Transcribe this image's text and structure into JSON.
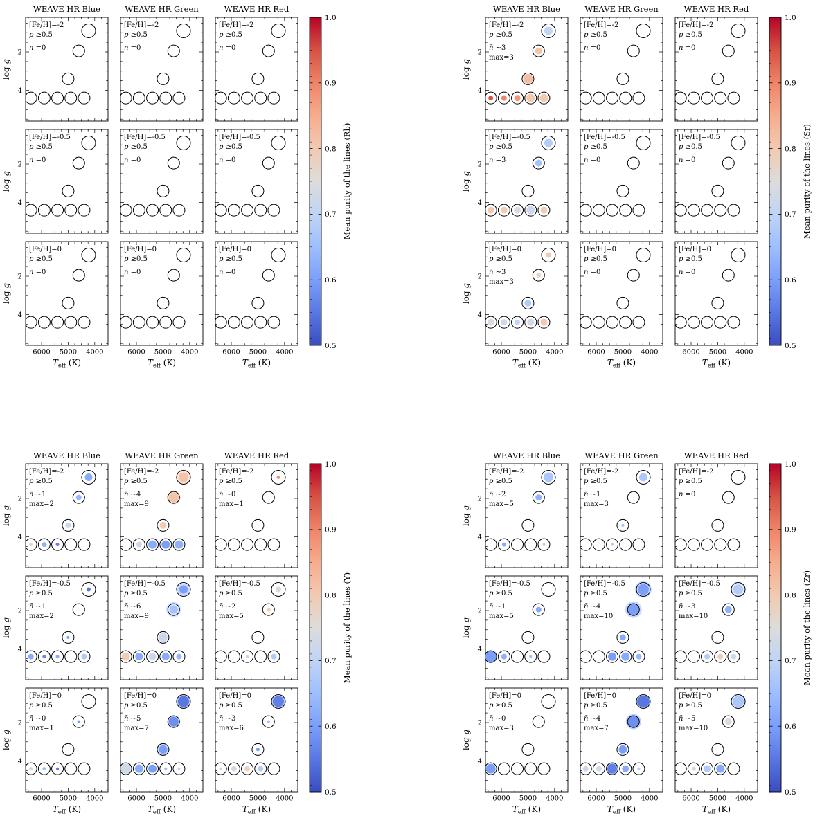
{
  "figure_title": "",
  "marker_grid": [
    {
      "teff": 4230,
      "logg": 0.9,
      "r": 10
    },
    {
      "teff": 4600,
      "logg": 1.95,
      "r": 8.5
    },
    {
      "teff": 5000,
      "logg": 3.4,
      "r": 8.5
    },
    {
      "teff": 6400,
      "logg": 4.4,
      "r": 8.5
    },
    {
      "teff": 5900,
      "logg": 4.4,
      "r": 8.5
    },
    {
      "teff": 5400,
      "logg": 4.4,
      "r": 8.5
    },
    {
      "teff": 4900,
      "logg": 4.4,
      "r": 8.5
    },
    {
      "teff": 4400,
      "logg": 4.4,
      "r": 8.5
    }
  ],
  "chart_data": [
    {
      "type": "scatter",
      "species": "Rb",
      "colorbar_label": "Mean purity of the lines (Rb)",
      "colorbar_ticks": [
        1.0,
        0.9,
        0.8,
        0.7,
        0.6,
        0.5
      ],
      "colorbar_range": [
        0.5,
        1.0
      ],
      "column_titles": [
        "WEAVE HR Blue",
        "WEAVE HR Green",
        "WEAVE HR Red"
      ],
      "row_feh_labels": [
        "[Fe/H]=-2",
        "[Fe/H]=-0.5",
        "[Fe/H]=0"
      ],
      "p_label": "p ≥0.5",
      "xlabel": "T_eff (K)",
      "ylabel": "log g",
      "x_ticks": [
        6000,
        5000,
        4000
      ],
      "y_ticks": [
        2,
        4
      ],
      "x_range": [
        6600,
        3500
      ],
      "y_range": [
        0.2,
        5.6
      ],
      "panels": [
        {
          "n_lines": [
            "n =0"
          ],
          "dots": []
        },
        {
          "n_lines": [
            "n =0"
          ],
          "dots": []
        },
        {
          "n_lines": [
            "n =0"
          ],
          "dots": []
        },
        {
          "n_lines": [
            "n =0"
          ],
          "dots": []
        },
        {
          "n_lines": [
            "n =0"
          ],
          "dots": []
        },
        {
          "n_lines": [
            "n =0"
          ],
          "dots": []
        },
        {
          "n_lines": [
            "n =0"
          ],
          "dots": []
        },
        {
          "n_lines": [
            "n =0"
          ],
          "dots": []
        },
        {
          "n_lines": [
            "n =0"
          ],
          "dots": []
        }
      ]
    },
    {
      "type": "scatter",
      "species": "Sr",
      "colorbar_label": "Mean purity of the lines (Sr)",
      "colorbar_ticks": [
        1.0,
        0.9,
        0.8,
        0.7,
        0.6,
        0.5
      ],
      "colorbar_range": [
        0.5,
        1.0
      ],
      "column_titles": [
        "WEAVE HR Blue",
        "WEAVE HR Green",
        "WEAVE HR Red"
      ],
      "row_feh_labels": [
        "[Fe/H]=-2",
        "[Fe/H]=-0.5",
        "[Fe/H]=0"
      ],
      "p_label": "p ≥0.5",
      "xlabel": "T_eff (K)",
      "ylabel": "log g",
      "x_ticks": [
        6000,
        5000,
        4000
      ],
      "y_ticks": [
        2,
        4
      ],
      "x_range": [
        6600,
        3500
      ],
      "y_range": [
        0.2,
        5.6
      ],
      "panels": [
        {
          "n_lines": [
            "n̄ ∼3",
            "max=3"
          ],
          "dots": [
            {
              "m": 0,
              "r": 6,
              "v": 0.7
            },
            {
              "m": 1,
              "r": 5,
              "v": 0.81
            },
            {
              "m": 2,
              "r": 7,
              "v": 0.82
            },
            {
              "m": 3,
              "r": 3.5,
              "v": 0.95
            },
            {
              "m": 4,
              "r": 4,
              "v": 0.9
            },
            {
              "m": 5,
              "r": 4.5,
              "v": 0.88
            },
            {
              "m": 6,
              "r": 6,
              "v": 0.8
            },
            {
              "m": 7,
              "r": 6,
              "v": 0.8
            }
          ]
        },
        {
          "n_lines": [
            "n =0"
          ],
          "dots": []
        },
        {
          "n_lines": [
            "n =0"
          ],
          "dots": []
        },
        {
          "n_lines": [
            "n =3"
          ],
          "dots": [
            {
              "m": 0,
              "r": 6,
              "v": 0.68
            },
            {
              "m": 1,
              "r": 5,
              "v": 0.66
            },
            {
              "m": 3,
              "r": 5,
              "v": 0.8
            },
            {
              "m": 4,
              "r": 5,
              "v": 0.79
            },
            {
              "m": 5,
              "r": 5,
              "v": 0.74
            },
            {
              "m": 6,
              "r": 6,
              "v": 0.72
            },
            {
              "m": 7,
              "r": 5,
              "v": 0.79
            }
          ]
        },
        {
          "n_lines": [
            "n =0"
          ],
          "dots": []
        },
        {
          "n_lines": [
            "n =0"
          ],
          "dots": []
        },
        {
          "n_lines": [
            "n̄ ∼3",
            "max=3"
          ],
          "dots": [
            {
              "m": 0,
              "r": 4,
              "v": 0.8
            },
            {
              "m": 1,
              "r": 3.5,
              "v": 0.77
            },
            {
              "m": 2,
              "r": 5,
              "v": 0.68
            },
            {
              "m": 3,
              "r": 5,
              "v": 0.74
            },
            {
              "m": 4,
              "r": 4.5,
              "v": 0.73
            },
            {
              "m": 5,
              "r": 4,
              "v": 0.7
            },
            {
              "m": 6,
              "r": 5,
              "v": 0.73
            },
            {
              "m": 7,
              "r": 5,
              "v": 0.8
            }
          ]
        },
        {
          "n_lines": [
            "n =0"
          ],
          "dots": []
        },
        {
          "n_lines": [
            "n =0"
          ],
          "dots": []
        }
      ]
    },
    {
      "type": "scatter",
      "species": "Y",
      "colorbar_label": "Mean purity of the lines (Y)",
      "colorbar_ticks": [
        1.0,
        0.9,
        0.8,
        0.7,
        0.6,
        0.5
      ],
      "colorbar_range": [
        0.5,
        1.0
      ],
      "column_titles": [
        "WEAVE HR Blue",
        "WEAVE HR Green",
        "WEAVE HR Red"
      ],
      "row_feh_labels": [
        "[Fe/H]=-2",
        "[Fe/H]=-0.5",
        "[Fe/H]=0"
      ],
      "p_label": "p ≥0.5",
      "xlabel": "T_eff (K)",
      "ylabel": "log g",
      "x_ticks": [
        6000,
        5000,
        4000
      ],
      "y_ticks": [
        2,
        4
      ],
      "x_range": [
        6600,
        3500
      ],
      "y_range": [
        0.2,
        5.6
      ],
      "panels": [
        {
          "n_lines": [
            "n̄ ∼1",
            "max=2"
          ],
          "dots": [
            {
              "m": 0,
              "r": 5.5,
              "v": 0.62
            },
            {
              "m": 1,
              "r": 4,
              "v": 0.64
            },
            {
              "m": 2,
              "r": 4,
              "v": 0.72
            },
            {
              "m": 3,
              "r": 2.5,
              "v": 0.78
            },
            {
              "m": 4,
              "r": 3.5,
              "v": 0.63
            },
            {
              "m": 5,
              "r": 2.5,
              "v": 0.56
            }
          ]
        },
        {
          "n_lines": [
            "n̄ ∼4",
            "max=9"
          ],
          "dots": [
            {
              "m": 0,
              "r": 7,
              "v": 0.81,
              "h": 11
            },
            {
              "m": 1,
              "r": 7,
              "v": 0.81,
              "h": 10
            },
            {
              "m": 2,
              "r": 5,
              "v": 0.8
            },
            {
              "m": 4,
              "r": 4,
              "v": 0.72
            },
            {
              "m": 5,
              "r": 6,
              "v": 0.62
            },
            {
              "m": 6,
              "r": 6,
              "v": 0.6
            },
            {
              "m": 7,
              "r": 6,
              "v": 0.63
            }
          ]
        },
        {
          "n_lines": [
            "n̄ ∼0",
            "max=1"
          ],
          "dots": [
            {
              "m": 0,
              "r": 2.5,
              "v": 0.88
            }
          ]
        },
        {
          "n_lines": [
            "n̄ ∼1",
            "max=2"
          ],
          "dots": [
            {
              "m": 0,
              "r": 3,
              "v": 0.55
            },
            {
              "m": 2,
              "r": 2,
              "v": 0.6
            },
            {
              "m": 3,
              "r": 4,
              "v": 0.62
            },
            {
              "m": 4,
              "r": 2.5,
              "v": 0.57
            },
            {
              "m": 5,
              "r": 2.5,
              "v": 0.62
            },
            {
              "m": 7,
              "r": 4,
              "v": 0.68
            }
          ]
        },
        {
          "n_lines": [
            "n̄ ∼6",
            "max=9"
          ],
          "dots": [
            {
              "m": 0,
              "r": 6,
              "v": 0.6,
              "h": 9
            },
            {
              "m": 1,
              "r": 6,
              "v": 0.66,
              "h": 11
            },
            {
              "m": 2,
              "r": 6,
              "v": 0.72,
              "h": 9
            },
            {
              "m": 3,
              "r": 6,
              "v": 0.79
            },
            {
              "m": 4,
              "r": 5.5,
              "v": 0.62
            },
            {
              "m": 5,
              "r": 5.5,
              "v": 0.72
            },
            {
              "m": 6,
              "r": 5.5,
              "v": 0.62
            },
            {
              "m": 7,
              "r": 4,
              "v": 0.64
            }
          ]
        },
        {
          "n_lines": [
            "n̄ ∼2",
            "max=5"
          ],
          "dots": [
            {
              "m": 0,
              "r": 4,
              "v": 0.76
            },
            {
              "m": 1,
              "r": 3,
              "v": 0.78
            },
            {
              "m": 5,
              "r": 2,
              "v": 0.7
            },
            {
              "m": 7,
              "r": 4,
              "v": 0.68
            }
          ]
        },
        {
          "n_lines": [
            "n̄ ∼0",
            "max=1"
          ],
          "dots": [
            {
              "m": 1,
              "r": 2,
              "v": 0.6
            },
            {
              "m": 3,
              "r": 2.5,
              "v": 0.72
            },
            {
              "m": 4,
              "r": 2.5,
              "v": 0.65
            },
            {
              "m": 5,
              "r": 2,
              "v": 0.55
            }
          ]
        },
        {
          "n_lines": [
            "n̄ ∼5",
            "max=7"
          ],
          "dots": [
            {
              "m": 0,
              "r": 8,
              "v": 0.55,
              "h": 10
            },
            {
              "m": 1,
              "r": 7,
              "v": 0.58,
              "h": 9
            },
            {
              "m": 2,
              "r": 6,
              "v": 0.6,
              "h": 9
            },
            {
              "m": 3,
              "r": 7,
              "v": 0.73,
              "h": 9
            },
            {
              "m": 4,
              "r": 6,
              "v": 0.62
            },
            {
              "m": 5,
              "r": 6,
              "v": 0.6
            },
            {
              "m": 6,
              "r": 2,
              "v": 0.65
            },
            {
              "m": 7,
              "r": 2,
              "v": 0.7
            }
          ]
        },
        {
          "n_lines": [
            "n̄ ∼3",
            "max=6"
          ],
          "dots": [
            {
              "m": 0,
              "r": 8,
              "v": 0.56,
              "h": 10
            },
            {
              "m": 1,
              "r": 2,
              "v": 0.65
            },
            {
              "m": 2,
              "r": 2.5,
              "v": 0.6
            },
            {
              "m": 3,
              "r": 2,
              "v": 0.7
            },
            {
              "m": 4,
              "r": 4,
              "v": 0.73
            },
            {
              "m": 5,
              "r": 4,
              "v": 0.78
            },
            {
              "m": 6,
              "r": 4,
              "v": 0.68
            }
          ]
        }
      ]
    },
    {
      "type": "scatter",
      "species": "Zr",
      "colorbar_label": "Mean purity of the lines (Zr)",
      "colorbar_ticks": [
        1.0,
        0.9,
        0.8,
        0.7,
        0.6,
        0.5
      ],
      "colorbar_range": [
        0.5,
        1.0
      ],
      "column_titles": [
        "WEAVE HR Blue",
        "WEAVE HR Green",
        "WEAVE HR Red"
      ],
      "row_feh_labels": [
        "[Fe/H]=-2",
        "[Fe/H]=-0.5",
        "[Fe/H]=0"
      ],
      "p_label": "p ≥0.5",
      "xlabel": "T_eff (K)",
      "ylabel": "log g",
      "x_ticks": [
        6000,
        5000,
        4000
      ],
      "y_ticks": [
        2,
        4
      ],
      "x_range": [
        6600,
        3500
      ],
      "y_range": [
        0.2,
        5.6
      ],
      "panels": [
        {
          "n_lines": [
            "n̄ ∼2",
            "max=5"
          ],
          "dots": [
            {
              "m": 0,
              "r": 7,
              "v": 0.67
            },
            {
              "m": 1,
              "r": 4.5,
              "v": 0.63
            },
            {
              "m": 4,
              "r": 3,
              "v": 0.62
            },
            {
              "m": 7,
              "r": 2,
              "v": 0.68
            }
          ]
        },
        {
          "n_lines": [
            "n̄ ∼1",
            "max=3"
          ],
          "dots": [
            {
              "m": 0,
              "r": 6,
              "v": 0.67
            },
            {
              "m": 2,
              "r": 2,
              "v": 0.65
            },
            {
              "m": 5,
              "r": 2,
              "v": 0.68
            }
          ]
        },
        {
          "n_lines": [
            "n =0"
          ],
          "dots": []
        },
        {
          "n_lines": [
            "n̄ ∼1",
            "max=5"
          ],
          "dots": [
            {
              "m": 1,
              "r": 4,
              "v": 0.62
            },
            {
              "m": 3,
              "r": 9,
              "v": 0.6
            },
            {
              "m": 4,
              "r": 4,
              "v": 0.63
            },
            {
              "m": 6,
              "r": 2,
              "v": 0.65
            }
          ]
        },
        {
          "n_lines": [
            "n̄ ∼4",
            "max=10"
          ],
          "dots": [
            {
              "m": 0,
              "r": 8,
              "v": 0.6,
              "h": 12
            },
            {
              "m": 1,
              "r": 8,
              "v": 0.6,
              "h": 12
            },
            {
              "m": 2,
              "r": 4.5,
              "v": 0.62
            },
            {
              "m": 5,
              "r": 6,
              "v": 0.6
            },
            {
              "m": 6,
              "r": 6,
              "v": 0.62
            },
            {
              "m": 7,
              "r": 4,
              "v": 0.64
            }
          ]
        },
        {
          "n_lines": [
            "n̄ ∼3",
            "max=10"
          ],
          "dots": [
            {
              "m": 0,
              "r": 7,
              "v": 0.68,
              "h": 11
            },
            {
              "m": 1,
              "r": 5,
              "v": 0.63
            },
            {
              "m": 5,
              "r": 4,
              "v": 0.68
            },
            {
              "m": 6,
              "r": 4,
              "v": 0.79
            },
            {
              "m": 7,
              "r": 4,
              "v": 0.73
            }
          ]
        },
        {
          "n_lines": [
            "n̄ ∼0",
            "max=3"
          ],
          "dots": [
            {
              "m": 3,
              "r": 7,
              "v": 0.6
            }
          ]
        },
        {
          "n_lines": [
            "n̄ ∼4",
            "max=7"
          ],
          "dots": [
            {
              "m": 0,
              "r": 9,
              "v": 0.55
            },
            {
              "m": 1,
              "r": 8,
              "v": 0.58,
              "h": 11
            },
            {
              "m": 2,
              "r": 6,
              "v": 0.6
            },
            {
              "m": 3,
              "r": 4,
              "v": 0.72
            },
            {
              "m": 4,
              "r": 4,
              "v": 0.73
            },
            {
              "m": 5,
              "r": 7,
              "v": 0.56,
              "h": 9
            },
            {
              "m": 6,
              "r": 5,
              "v": 0.62
            },
            {
              "m": 7,
              "r": 2,
              "v": 0.68
            }
          ]
        },
        {
          "n_lines": [
            "n̄ ∼5",
            "max=10"
          ],
          "dots": [
            {
              "m": 0,
              "r": 8,
              "v": 0.67,
              "h": 11
            },
            {
              "m": 1,
              "r": 5,
              "v": 0.75
            },
            {
              "m": 4,
              "r": 3,
              "v": 0.73
            },
            {
              "m": 5,
              "r": 5,
              "v": 0.68
            },
            {
              "m": 6,
              "r": 6,
              "v": 0.62
            }
          ]
        }
      ]
    }
  ],
  "colormap": {
    "name": "coolwarm",
    "low": "#3b4cc0",
    "mid": "#dddcdc",
    "high": "#b40426"
  }
}
